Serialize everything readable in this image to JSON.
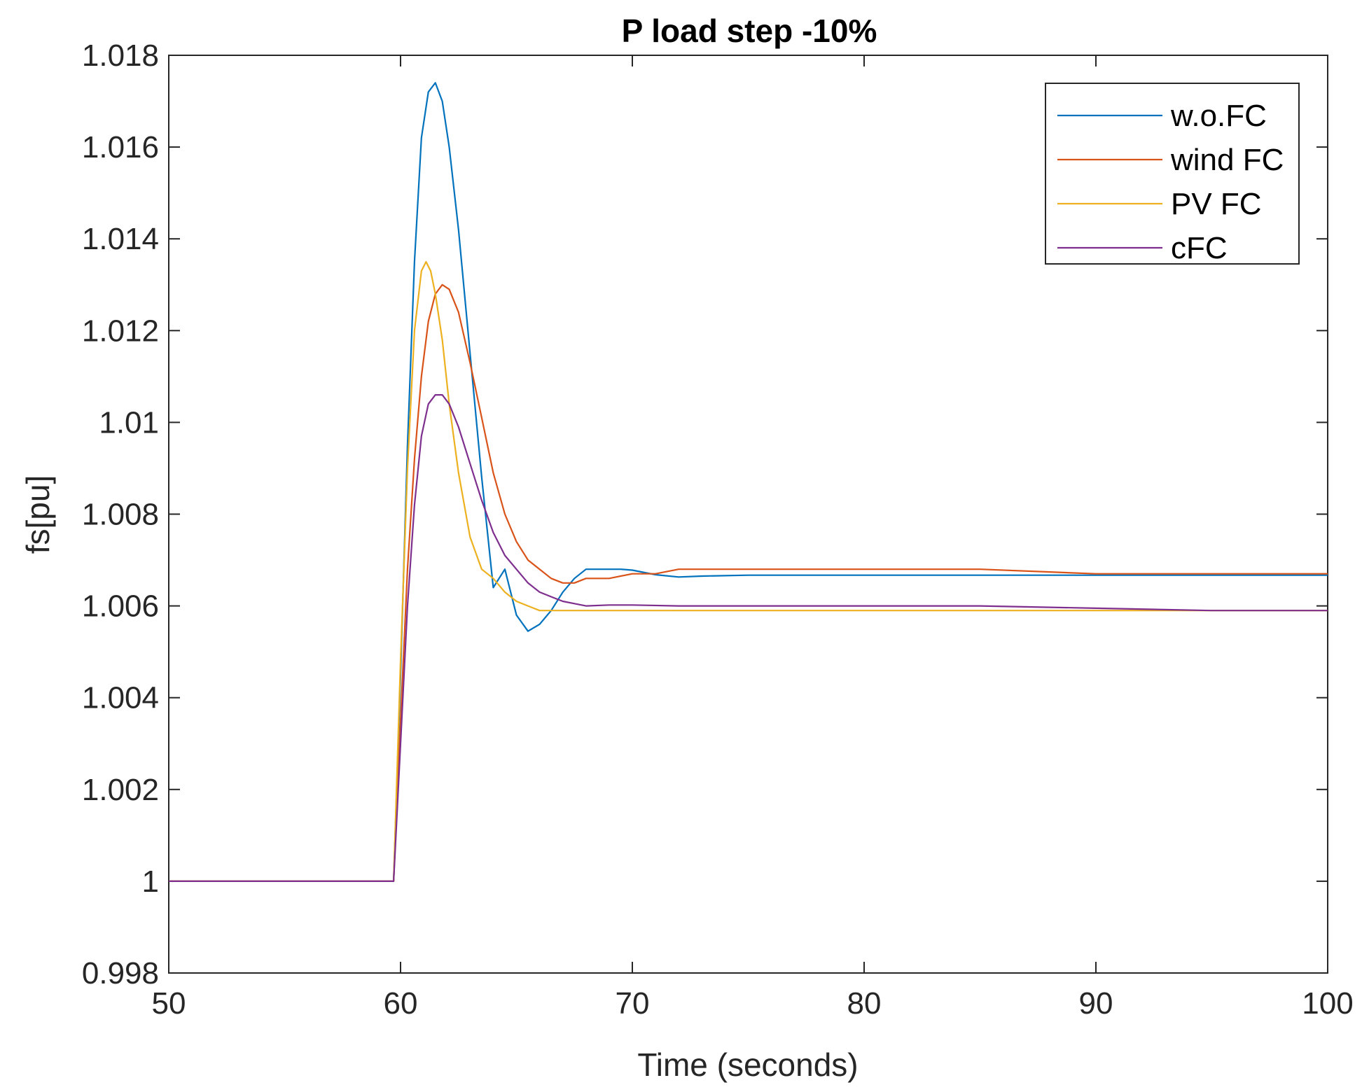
{
  "chart_data": {
    "type": "line",
    "title": "P load step -10%",
    "xlabel": "Time (seconds)",
    "ylabel": "fs[pu]",
    "xlim": [
      50,
      100
    ],
    "ylim": [
      0.998,
      1.018
    ],
    "xticks": [
      50,
      60,
      70,
      80,
      90,
      100
    ],
    "xtick_labels": [
      "50",
      "60",
      "70",
      "80",
      "90",
      "100"
    ],
    "yticks": [
      0.998,
      1.0,
      1.002,
      1.004,
      1.006,
      1.008,
      1.01,
      1.012,
      1.014,
      1.016,
      1.018
    ],
    "ytick_labels": [
      "0.998",
      "1",
      "1.002",
      "1.004",
      "1.006",
      "1.008",
      "1.01",
      "1.012",
      "1.014",
      "1.016",
      "1.018"
    ],
    "grid": false,
    "legend_position": "top-right",
    "series": [
      {
        "name": "w.o.FC",
        "color": "#0072BD",
        "x": [
          50,
          59.7,
          60.0,
          60.3,
          60.6,
          60.9,
          61.2,
          61.5,
          61.8,
          62.1,
          62.5,
          63.0,
          63.5,
          64.0,
          64.5,
          65.0,
          65.5,
          66.0,
          66.5,
          67.0,
          67.5,
          68.0,
          68.5,
          69.0,
          69.5,
          70.0,
          71.0,
          72.0,
          73.0,
          75.0,
          80.0,
          85.0,
          90.0,
          95.0,
          100.0
        ],
        "y": [
          1.0,
          1.0,
          1.0045,
          1.0095,
          1.0135,
          1.0162,
          1.0172,
          1.0174,
          1.017,
          1.016,
          1.0142,
          1.0115,
          1.0088,
          1.0064,
          1.0068,
          1.0058,
          1.00545,
          1.0056,
          1.0059,
          1.0063,
          1.0066,
          1.0068,
          1.0068,
          1.0068,
          1.0068,
          1.00678,
          1.00668,
          1.00663,
          1.00665,
          1.00667,
          1.00667,
          1.00667,
          1.00667,
          1.00667,
          1.00667
        ]
      },
      {
        "name": "wind FC",
        "color": "#D95319",
        "x": [
          50,
          59.7,
          60.0,
          60.3,
          60.6,
          60.9,
          61.2,
          61.5,
          61.8,
          62.1,
          62.5,
          63.0,
          63.5,
          64.0,
          64.5,
          65.0,
          65.5,
          66.0,
          66.5,
          67.0,
          67.5,
          68.0,
          68.5,
          69.0,
          70.0,
          71.0,
          72.0,
          74.0,
          76.0,
          78.0,
          80.0,
          85.0,
          90.0,
          95.0,
          100.0
        ],
        "y": [
          1.0,
          1.0,
          1.0035,
          1.0068,
          1.0092,
          1.011,
          1.0122,
          1.0128,
          1.013,
          1.0129,
          1.0124,
          1.0113,
          1.0101,
          1.0089,
          1.008,
          1.0074,
          1.007,
          1.0068,
          1.0066,
          1.0065,
          1.0065,
          1.0066,
          1.0066,
          1.0066,
          1.0067,
          1.0067,
          1.0068,
          1.0068,
          1.0068,
          1.0068,
          1.0068,
          1.0068,
          1.0067,
          1.0067,
          1.0067
        ]
      },
      {
        "name": "PV FC",
        "color": "#EDB120",
        "x": [
          50,
          59.7,
          60.0,
          60.3,
          60.6,
          60.9,
          61.1,
          61.3,
          61.5,
          61.8,
          62.1,
          62.5,
          63.0,
          63.5,
          64.0,
          64.5,
          65.0,
          65.5,
          66.0,
          66.5,
          67.0,
          68.0,
          69.0,
          70.0,
          72.0,
          75.0,
          80.0,
          85.0,
          90.0,
          95.0,
          100.0
        ],
        "y": [
          1.0,
          1.0,
          1.0048,
          1.009,
          1.012,
          1.0133,
          1.0135,
          1.0133,
          1.0128,
          1.0118,
          1.0104,
          1.0089,
          1.0075,
          1.0068,
          1.0066,
          1.0063,
          1.0061,
          1.006,
          1.0059,
          1.0059,
          1.0059,
          1.0059,
          1.0059,
          1.0059,
          1.0059,
          1.0059,
          1.0059,
          1.0059,
          1.0059,
          1.0059,
          1.0059
        ]
      },
      {
        "name": "cFC",
        "color": "#7E2F8E",
        "x": [
          50,
          59.7,
          60.0,
          60.3,
          60.6,
          60.9,
          61.2,
          61.5,
          61.8,
          62.1,
          62.5,
          63.0,
          63.5,
          64.0,
          64.5,
          65.0,
          65.5,
          66.0,
          66.5,
          67.0,
          67.5,
          68.0,
          69.0,
          70.0,
          72.0,
          75.0,
          80.0,
          85.0,
          90.0,
          95.0,
          100.0
        ],
        "y": [
          1.0,
          1.0,
          1.003,
          1.006,
          1.0082,
          1.0097,
          1.0104,
          1.0106,
          1.0106,
          1.0104,
          1.0099,
          1.0091,
          1.0083,
          1.0076,
          1.0071,
          1.0068,
          1.0065,
          1.0063,
          1.0062,
          1.0061,
          1.00605,
          1.006,
          1.00602,
          1.00602,
          1.006,
          1.006,
          1.006,
          1.006,
          1.00595,
          1.0059,
          1.0059
        ]
      }
    ]
  }
}
